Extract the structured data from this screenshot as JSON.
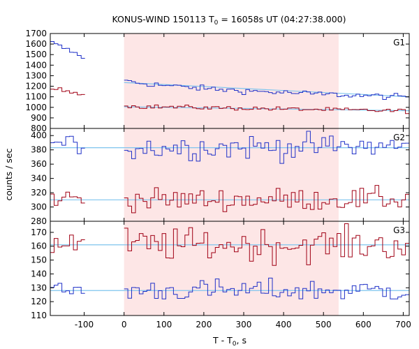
{
  "title": {
    "prefix": "KONUS-WIND 150113 T",
    "sub": "0",
    "suffix": " = 16058s UT (04:27:38.000)"
  },
  "ylabel": "counts / sec",
  "xlabel": {
    "prefix": "T - T",
    "sub": "0",
    "suffix": ", s"
  },
  "colors": {
    "blue": "#1f30c8",
    "red": "#a00014",
    "fit": "#7ec4ee",
    "shade": "#fde6e6",
    "frame": "#000000"
  },
  "chart_data": [
    {
      "type": "line",
      "panel": "G1",
      "xlim": [
        -185,
        715
      ],
      "ylim": [
        800,
        1700
      ],
      "yticks": [
        800,
        900,
        1000,
        1100,
        1200,
        1300,
        1400,
        1500,
        1600,
        1700
      ],
      "shaded_interval": [
        0,
        538
      ],
      "series": [
        {
          "color": "blue",
          "segments": [
            {
              "x0": -185,
              "x1": -98,
              "y0": 1620,
              "y1": 1470,
              "noise": 12
            },
            {
              "x0": 0,
              "x1": 715,
              "y0": 1250,
              "y1": 1095,
              "noise": 14,
              "decay": 0.25
            }
          ]
        },
        {
          "color": "red",
          "segments": [
            {
              "x0": -185,
              "x1": -98,
              "y0": 1180,
              "y1": 1130,
              "noise": 10
            },
            {
              "x0": 0,
              "x1": 715,
              "y0": 1010,
              "y1": 965,
              "noise": 10
            }
          ]
        }
      ],
      "fits": [
        {
          "x0": 0,
          "x1": 715,
          "y0": 1235,
          "y1": 1100
        },
        {
          "x0": 0,
          "x1": 715,
          "y0": 1005,
          "y1": 968
        }
      ]
    },
    {
      "type": "line",
      "panel": "G2",
      "xlim": [
        -185,
        715
      ],
      "ylim": [
        280,
        410
      ],
      "yticks": [
        280,
        300,
        320,
        340,
        360,
        380,
        400
      ],
      "shaded_interval": [
        0,
        538
      ],
      "series": [
        {
          "color": "blue",
          "segments": [
            {
              "x0": -185,
              "x1": -98,
              "y0": 388,
              "y1": 386,
              "noise": 7
            },
            {
              "x0": 0,
              "x1": 715,
              "y0": 383,
              "y1": 385,
              "noise": 9
            }
          ]
        },
        {
          "color": "red",
          "segments": [
            {
              "x0": -185,
              "x1": -98,
              "y0": 312,
              "y1": 313,
              "noise": 6
            },
            {
              "x0": 0,
              "x1": 715,
              "y0": 310,
              "y1": 311,
              "noise": 8
            }
          ]
        }
      ],
      "fits": [
        {
          "x0": -185,
          "x1": 715,
          "y0": 383,
          "y1": 383
        },
        {
          "x0": -185,
          "x1": 715,
          "y0": 310,
          "y1": 310
        }
      ]
    },
    {
      "type": "line",
      "panel": "G3",
      "xlim": [
        -185,
        715
      ],
      "ylim": [
        110,
        178
      ],
      "yticks": [
        110,
        120,
        130,
        140,
        150,
        160,
        170
      ],
      "shaded_interval": [
        0,
        538
      ],
      "xticks": [
        -100,
        0,
        100,
        200,
        300,
        400,
        500,
        600,
        700
      ],
      "series": [
        {
          "color": "red",
          "segments": [
            {
              "x0": -185,
              "x1": -98,
              "y0": 162,
              "y1": 162,
              "noise": 5
            },
            {
              "x0": 0,
              "x1": 715,
              "y0": 161,
              "y1": 161,
              "noise": 6
            }
          ]
        },
        {
          "color": "blue",
          "segments": [
            {
              "x0": -185,
              "x1": -98,
              "y0": 128,
              "y1": 128,
              "noise": 3
            },
            {
              "x0": 0,
              "x1": 715,
              "y0": 128,
              "y1": 128,
              "noise": 4
            }
          ]
        }
      ],
      "fits": [
        {
          "x0": -185,
          "x1": 715,
          "y0": 161,
          "y1": 161
        },
        {
          "x0": -185,
          "x1": 715,
          "y0": 128,
          "y1": 128
        }
      ]
    }
  ]
}
